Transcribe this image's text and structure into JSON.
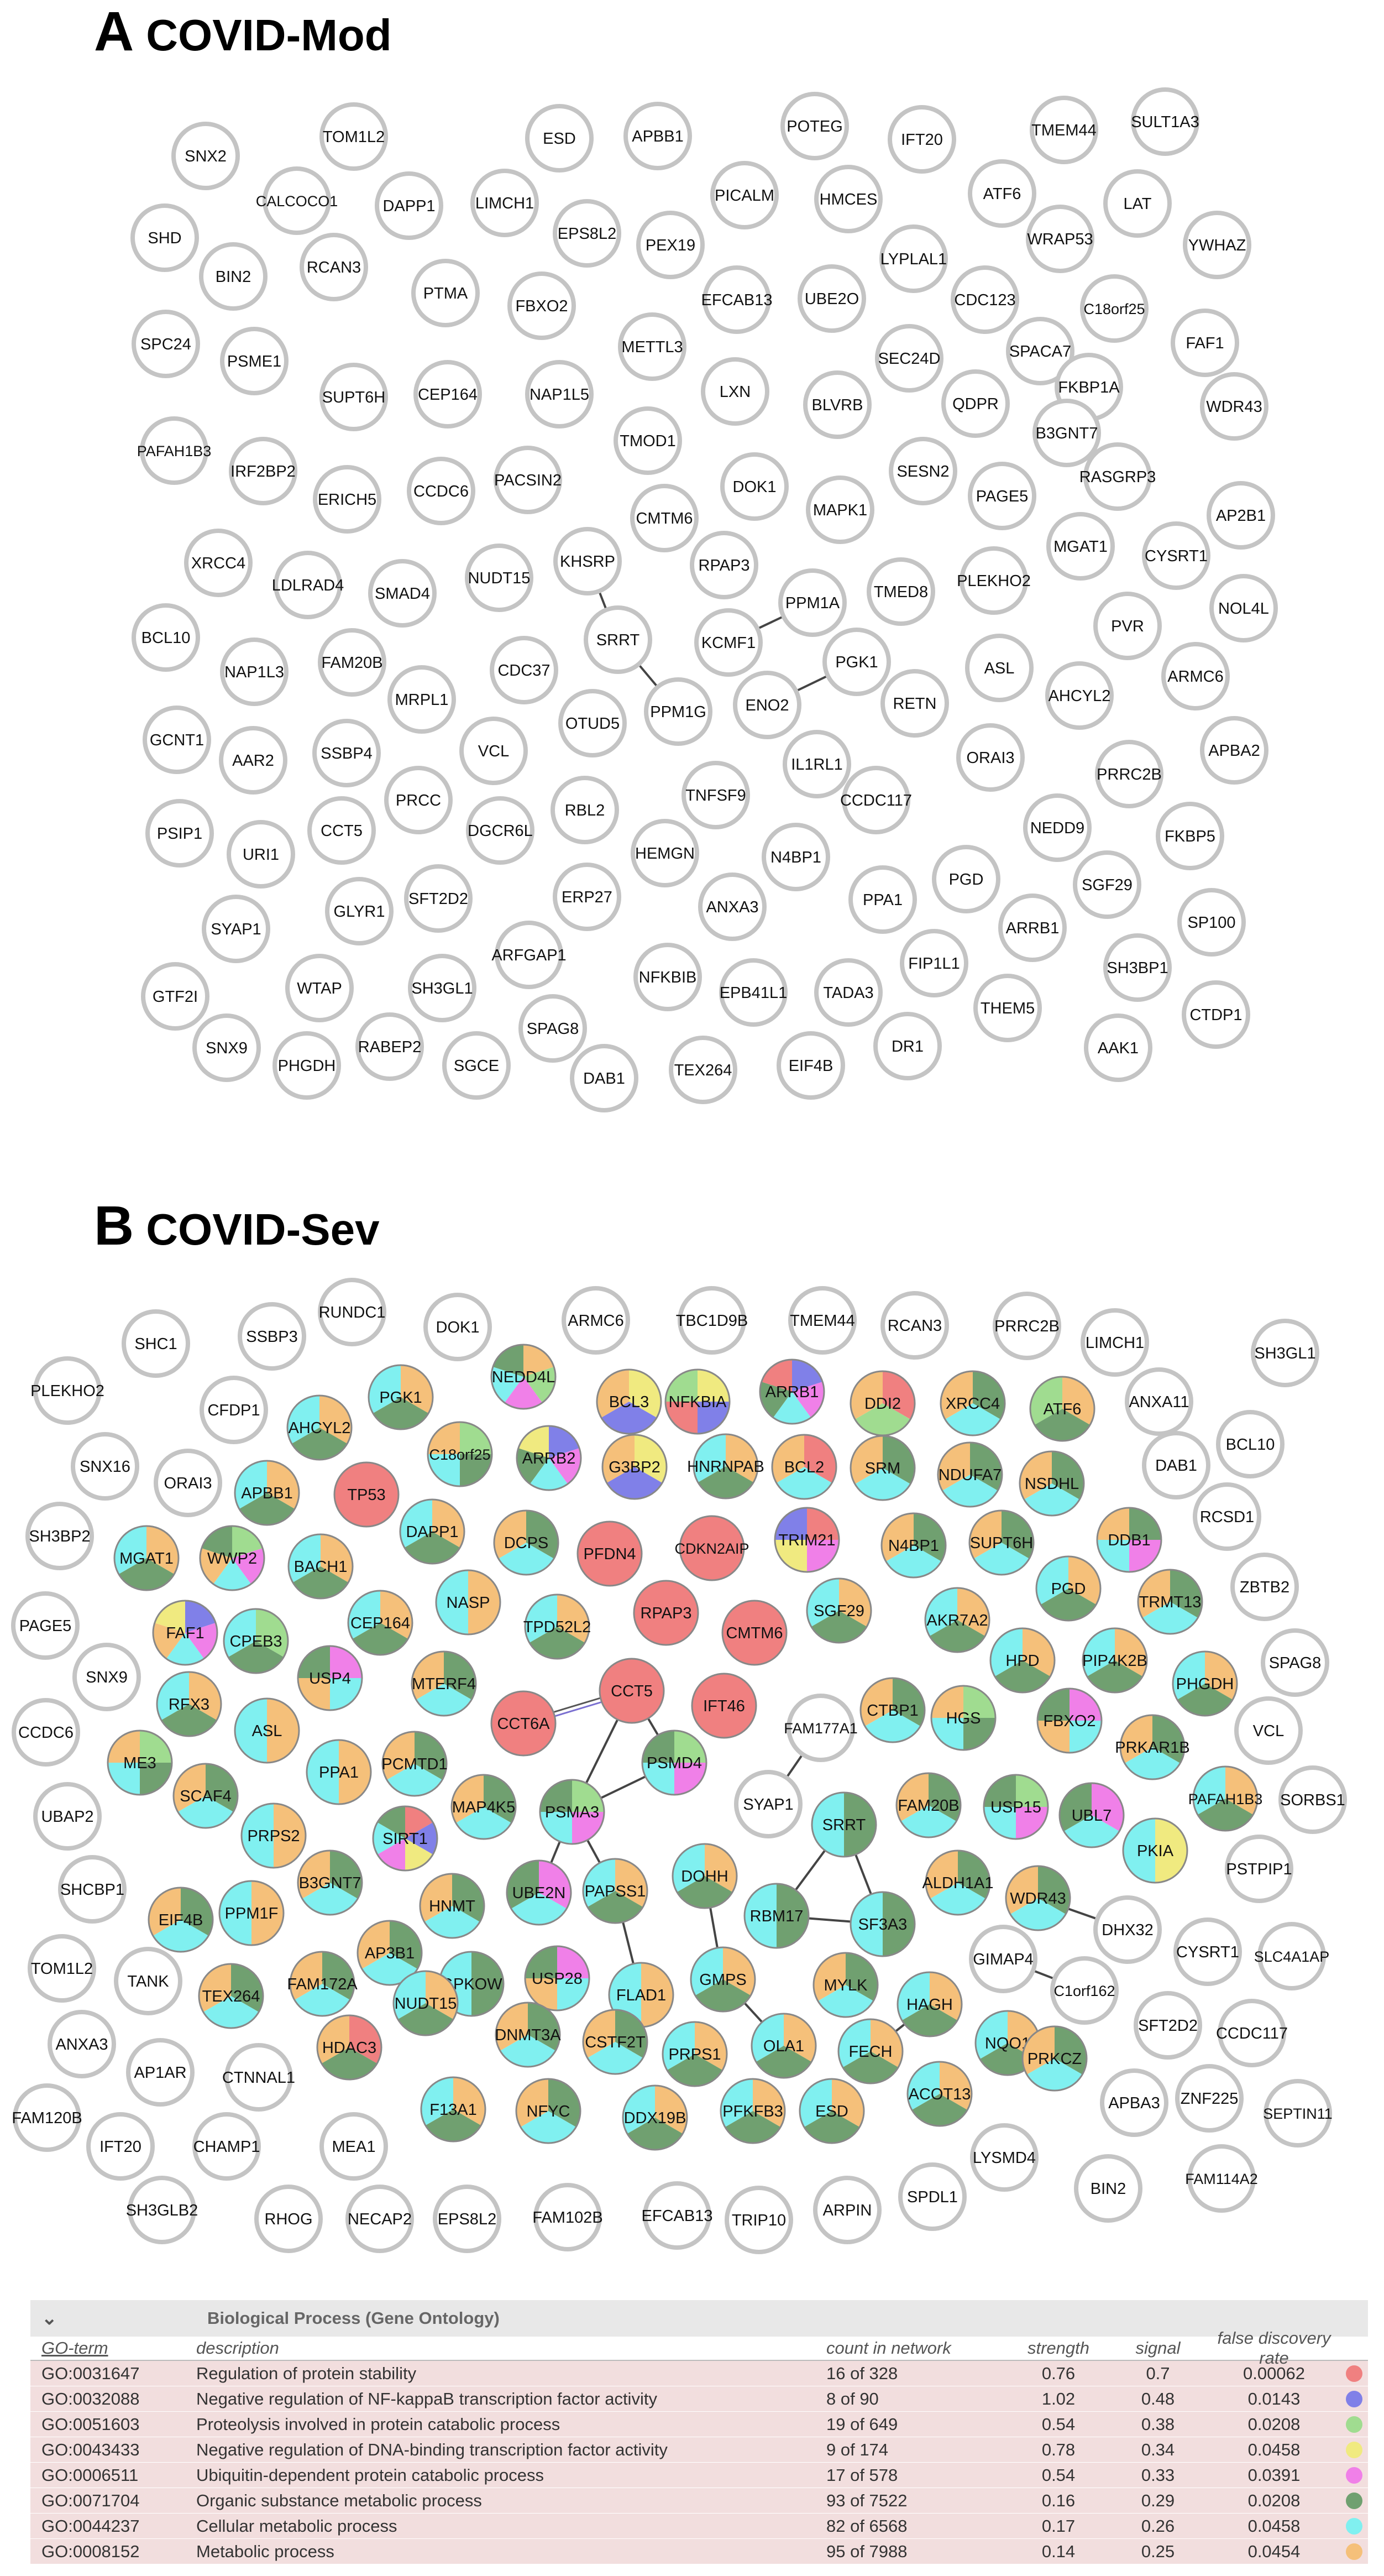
{
  "panel_a": {
    "letter": "A",
    "name": "COVID-Mod"
  },
  "panel_b": {
    "letter": "B",
    "name": "COVID-Sev"
  },
  "network_a": {
    "nodes": [
      {
        "label": "SNX2"
      },
      {
        "label": "TOM1L2"
      },
      {
        "label": "ESD"
      },
      {
        "label": "APBB1"
      },
      {
        "label": "POTEG"
      },
      {
        "label": "IFT20"
      },
      {
        "label": "TMEM44"
      },
      {
        "label": "SULT1A3"
      },
      {
        "label": "CALCOCO1"
      },
      {
        "label": "DAPP1"
      },
      {
        "label": "LIMCH1"
      },
      {
        "label": "PICALM"
      },
      {
        "label": "HMCES"
      },
      {
        "label": "ATF6"
      },
      {
        "label": "LAT"
      },
      {
        "label": "SHD"
      },
      {
        "label": "EPS8L2"
      },
      {
        "label": "PEX19"
      },
      {
        "label": "WRAP53"
      },
      {
        "label": "YWHAZ"
      },
      {
        "label": "BIN2"
      },
      {
        "label": "RCAN3"
      },
      {
        "label": "LYPLAL1"
      },
      {
        "label": "EFCAB13"
      },
      {
        "label": "UBE2O"
      },
      {
        "label": "CDC123"
      },
      {
        "label": "C18orf25"
      },
      {
        "label": "PTMA"
      },
      {
        "label": "FBXO2"
      },
      {
        "label": "SPC24"
      },
      {
        "label": "METTL3"
      },
      {
        "label": "SEC24D"
      },
      {
        "label": "SPACA7"
      },
      {
        "label": "FAF1"
      },
      {
        "label": "PSME1"
      },
      {
        "label": "FKBP1A"
      },
      {
        "label": "SUPT6H"
      },
      {
        "label": "CEP164"
      },
      {
        "label": "NAP1L5"
      },
      {
        "label": "LXN"
      },
      {
        "label": "BLVRB"
      },
      {
        "label": "QDPR"
      },
      {
        "label": "WDR43"
      },
      {
        "label": "B3GNT7"
      },
      {
        "label": "PAFAH1B3"
      },
      {
        "label": "IRF2BP2"
      },
      {
        "label": "TMOD1"
      },
      {
        "label": "SESN2"
      },
      {
        "label": "PACSIN2"
      },
      {
        "label": "ERICH5"
      },
      {
        "label": "CCDC6"
      },
      {
        "label": "DOK1"
      },
      {
        "label": "PAGE5"
      },
      {
        "label": "RASGRP3"
      },
      {
        "label": "MAPK1"
      },
      {
        "label": "AP2B1"
      },
      {
        "label": "CMTM6"
      },
      {
        "label": "XRCC4"
      },
      {
        "label": "KHSRP"
      },
      {
        "label": "MGAT1"
      },
      {
        "label": "CYSRT1"
      },
      {
        "label": "RPAP3"
      },
      {
        "label": "PLEKHO2"
      },
      {
        "label": "LDLRAD4"
      },
      {
        "label": "SMAD4"
      },
      {
        "label": "NUDT15"
      },
      {
        "label": "TMED8"
      },
      {
        "label": "PPM1A"
      },
      {
        "label": "NOL4L"
      },
      {
        "label": "BCL10"
      },
      {
        "label": "SRRT"
      },
      {
        "label": "KCMF1"
      },
      {
        "label": "PVR"
      },
      {
        "label": "NAP1L3"
      },
      {
        "label": "FAM20B"
      },
      {
        "label": "CDC37"
      },
      {
        "label": "PGK1"
      },
      {
        "label": "ASL"
      },
      {
        "label": "ARMC6"
      },
      {
        "label": "MRPL1"
      },
      {
        "label": "PPM1G"
      },
      {
        "label": "ENO2"
      },
      {
        "label": "RETN"
      },
      {
        "label": "AHCYL2"
      },
      {
        "label": "GCNT1"
      },
      {
        "label": "OTUD5"
      },
      {
        "label": "AAR2"
      },
      {
        "label": "SSBP4"
      },
      {
        "label": "VCL"
      },
      {
        "label": "IL1RL1"
      },
      {
        "label": "ORAI3"
      },
      {
        "label": "APBA2"
      },
      {
        "label": "PRCC"
      },
      {
        "label": "RBL2"
      },
      {
        "label": "TNFSF9"
      },
      {
        "label": "CCDC117"
      },
      {
        "label": "PRRC2B"
      },
      {
        "label": "PSIP1"
      },
      {
        "label": "URI1"
      },
      {
        "label": "CCT5"
      },
      {
        "label": "DGCR6L"
      },
      {
        "label": "NEDD9"
      },
      {
        "label": "FKBP5"
      },
      {
        "label": "HEMGN"
      },
      {
        "label": "N4BP1"
      },
      {
        "label": "SFT2D2"
      },
      {
        "label": "ERP27"
      },
      {
        "label": "PGD"
      },
      {
        "label": "SGF29"
      },
      {
        "label": "SYAP1"
      },
      {
        "label": "GLYR1"
      },
      {
        "label": "ANXA3"
      },
      {
        "label": "PPA1"
      },
      {
        "label": "SP100"
      },
      {
        "label": "ARRB1"
      },
      {
        "label": "FIP1L1"
      },
      {
        "label": "ARFGAP1"
      },
      {
        "label": "SH3BP1"
      },
      {
        "label": "GTF2I"
      },
      {
        "label": "WTAP"
      },
      {
        "label": "SH3GL1"
      },
      {
        "label": "NFKBIB"
      },
      {
        "label": "EPB41L1"
      },
      {
        "label": "TADA3"
      },
      {
        "label": "THEM5"
      },
      {
        "label": "CTDP1"
      },
      {
        "label": "SPAG8"
      },
      {
        "label": "DR1"
      },
      {
        "label": "AAK1"
      },
      {
        "label": "SNX9"
      },
      {
        "label": "RABEP2"
      },
      {
        "label": "PHGDH"
      },
      {
        "label": "SGCE"
      },
      {
        "label": "DAB1"
      },
      {
        "label": "TEX264"
      },
      {
        "label": "EIF4B"
      }
    ]
  },
  "network_b": {
    "nodes": [
      {
        "label": "RUNDC1"
      },
      {
        "label": "SHC1"
      },
      {
        "label": "SSBP3"
      },
      {
        "label": "DOK1"
      },
      {
        "label": "ARMC6"
      },
      {
        "label": "TBC1D9B"
      },
      {
        "label": "TMEM44"
      },
      {
        "label": "RCAN3"
      },
      {
        "label": "PRRC2B"
      },
      {
        "label": "LIMCH1"
      },
      {
        "label": "SH3GL1"
      },
      {
        "label": "PLEKHO2"
      },
      {
        "label": "NEDD4L"
      },
      {
        "label": "PGK1"
      },
      {
        "label": "BCL3"
      },
      {
        "label": "NFKBIA"
      },
      {
        "label": "ARRB1"
      },
      {
        "label": "DDI2"
      },
      {
        "label": "XRCC4"
      },
      {
        "label": "ATF6"
      },
      {
        "label": "ANXA11"
      },
      {
        "label": "CFDP1"
      },
      {
        "label": "AHCYL2"
      },
      {
        "label": "BCL10"
      },
      {
        "label": "SNX16"
      },
      {
        "label": "C18orf25"
      },
      {
        "label": "ARRB2"
      },
      {
        "label": "G3BP2"
      },
      {
        "label": "HNRNPAB"
      },
      {
        "label": "BCL2"
      },
      {
        "label": "SRM"
      },
      {
        "label": "NDUFA7"
      },
      {
        "label": "NSDHL"
      },
      {
        "label": "DAB1"
      },
      {
        "label": "ORAI3"
      },
      {
        "label": "APBB1"
      },
      {
        "label": "TP53"
      },
      {
        "label": "RCSD1"
      },
      {
        "label": "SH3BP2"
      },
      {
        "label": "DAPP1"
      },
      {
        "label": "DCPS"
      },
      {
        "label": "PFDN4"
      },
      {
        "label": "CDKN2AIP"
      },
      {
        "label": "TRIM21"
      },
      {
        "label": "N4BP1"
      },
      {
        "label": "SUPT6H"
      },
      {
        "label": "DDB1"
      },
      {
        "label": "MGAT1"
      },
      {
        "label": "WWP2"
      },
      {
        "label": "BACH1"
      },
      {
        "label": "PGD"
      },
      {
        "label": "ZBTB2"
      },
      {
        "label": "NASP"
      },
      {
        "label": "RPAP3"
      },
      {
        "label": "SGF29"
      },
      {
        "label": "TRMT13"
      },
      {
        "label": "PAGE5"
      },
      {
        "label": "CEP164"
      },
      {
        "label": "TPD52L2"
      },
      {
        "label": "CMTM6"
      },
      {
        "label": "AKR7A2"
      },
      {
        "label": "FAF1"
      },
      {
        "label": "CPEB3"
      },
      {
        "label": "HPD"
      },
      {
        "label": "PIP4K2B"
      },
      {
        "label": "SNX9"
      },
      {
        "label": "USP4"
      },
      {
        "label": "MTERF4"
      },
      {
        "label": "SPAG8"
      },
      {
        "label": "RFX3"
      },
      {
        "label": "CTBP1"
      },
      {
        "label": "PHGDH"
      },
      {
        "label": "CCT6A"
      },
      {
        "label": "CCT5"
      },
      {
        "label": "IFT46"
      },
      {
        "label": "CCDC6"
      },
      {
        "label": "ASL"
      },
      {
        "label": "FAM177A1"
      },
      {
        "label": "HGS"
      },
      {
        "label": "FBXO2"
      },
      {
        "label": "VCL"
      },
      {
        "label": "ME3"
      },
      {
        "label": "PCMTD1"
      },
      {
        "label": "PSMD4"
      },
      {
        "label": "PRKAR1B"
      },
      {
        "label": "PPA1"
      },
      {
        "label": "UBAP2"
      },
      {
        "label": "SCAF4"
      },
      {
        "label": "MAP4K5"
      },
      {
        "label": "PSMA3"
      },
      {
        "label": "SYAP1"
      },
      {
        "label": "FAM20B"
      },
      {
        "label": "USP15"
      },
      {
        "label": "UBL7"
      },
      {
        "label": "PAFAH1B3"
      },
      {
        "label": "SORBS1"
      },
      {
        "label": "PRPS2"
      },
      {
        "label": "SRRT"
      },
      {
        "label": "PKIA"
      },
      {
        "label": "SIRT1"
      },
      {
        "label": "PSTPIP1"
      },
      {
        "label": "SHCBP1"
      },
      {
        "label": "B3GNT7"
      },
      {
        "label": "UBE2N"
      },
      {
        "label": "PAPSS1"
      },
      {
        "label": "DOHH"
      },
      {
        "label": "ALDH1A1"
      },
      {
        "label": "WDR43"
      },
      {
        "label": "EIF4B"
      },
      {
        "label": "PPM1F"
      },
      {
        "label": "HNMT"
      },
      {
        "label": "RBM17"
      },
      {
        "label": "SF3A3"
      },
      {
        "label": "DHX32"
      },
      {
        "label": "TOM1L2"
      },
      {
        "label": "AP3B1"
      },
      {
        "label": "CYSRT1"
      },
      {
        "label": "SLC4A1AP"
      },
      {
        "label": "TANK"
      },
      {
        "label": "FAM172A"
      },
      {
        "label": "GPKOW"
      },
      {
        "label": "USP28"
      },
      {
        "label": "GMPS"
      },
      {
        "label": "MYLK"
      },
      {
        "label": "GIMAP4"
      },
      {
        "label": "C1orf162"
      },
      {
        "label": "TEX264"
      },
      {
        "label": "FLAD1"
      },
      {
        "label": "HAGH"
      },
      {
        "label": "SFT2D2"
      },
      {
        "label": "CCDC117"
      },
      {
        "label": "ANXA3"
      },
      {
        "label": "NUDT15"
      },
      {
        "label": "DNMT3A"
      },
      {
        "label": "CSTF2T"
      },
      {
        "label": "NQO1"
      },
      {
        "label": "AP1AR"
      },
      {
        "label": "HDAC3"
      },
      {
        "label": "PRPS1"
      },
      {
        "label": "OLA1"
      },
      {
        "label": "FECH"
      },
      {
        "label": "ACOT13"
      },
      {
        "label": "PRKCZ"
      },
      {
        "label": "CTNNAL1"
      },
      {
        "label": "APBA3"
      },
      {
        "label": "ZNF225"
      },
      {
        "label": "FAM120B"
      },
      {
        "label": "F13A1"
      },
      {
        "label": "NFYC"
      },
      {
        "label": "DDX19B"
      },
      {
        "label": "PFKFB3"
      },
      {
        "label": "ESD"
      },
      {
        "label": "SEPTIN11"
      },
      {
        "label": "IFT20"
      },
      {
        "label": "CHAMP1"
      },
      {
        "label": "MEA1"
      },
      {
        "label": "LYSMD4"
      },
      {
        "label": "FAM114A2"
      },
      {
        "label": "BIN2"
      },
      {
        "label": "SH3GLB2"
      },
      {
        "label": "RHOG"
      },
      {
        "label": "NECAP2"
      },
      {
        "label": "EPS8L2"
      },
      {
        "label": "FAM102B"
      },
      {
        "label": "EFCAB13"
      },
      {
        "label": "TRIP10"
      },
      {
        "label": "ARPIN"
      },
      {
        "label": "SPDL1"
      }
    ]
  },
  "go_table": {
    "section_title": "Biological Process (Gene Ontology)",
    "columns": {
      "term": "GO-term",
      "description": "description",
      "count": "count in network",
      "strength": "strength",
      "signal": "signal",
      "fdr": "false discovery rate"
    },
    "rows": [
      {
        "term": "GO:0031647",
        "description": "Regulation of protein stability",
        "count": "16 of 328",
        "strength": "0.76",
        "signal": "0.7",
        "fdr": "0.00062",
        "color": "#f08080"
      },
      {
        "term": "GO:0032088",
        "description": "Negative regulation of NF-kappaB transcription factor activity",
        "count": "8 of 90",
        "strength": "1.02",
        "signal": "0.48",
        "fdr": "0.0143",
        "color": "#8080e8"
      },
      {
        "term": "GO:0051603",
        "description": "Proteolysis involved in protein catabolic process",
        "count": "19 of 649",
        "strength": "0.54",
        "signal": "0.38",
        "fdr": "0.0208",
        "color": "#a0dc90"
      },
      {
        "term": "GO:0043433",
        "description": "Negative regulation of DNA-binding transcription factor activity",
        "count": "9 of 174",
        "strength": "0.78",
        "signal": "0.34",
        "fdr": "0.0458",
        "color": "#f0ea80"
      },
      {
        "term": "GO:0006511",
        "description": "Ubiquitin-dependent protein catabolic process",
        "count": "17 of 578",
        "strength": "0.54",
        "signal": "0.33",
        "fdr": "0.0391",
        "color": "#f080e8"
      },
      {
        "term": "GO:0071704",
        "description": "Organic substance metabolic process",
        "count": "93 of 7522",
        "strength": "0.16",
        "signal": "0.29",
        "fdr": "0.0208",
        "color": "#70a070"
      },
      {
        "term": "GO:0044237",
        "description": "Cellular metabolic process",
        "count": "82 of 6568",
        "strength": "0.17",
        "signal": "0.26",
        "fdr": "0.0458",
        "color": "#80f0f0"
      },
      {
        "term": "GO:0008152",
        "description": "Metabolic process",
        "count": "95 of 7988",
        "strength": "0.14",
        "signal": "0.25",
        "fdr": "0.0454",
        "color": "#f5c07a"
      }
    ]
  }
}
